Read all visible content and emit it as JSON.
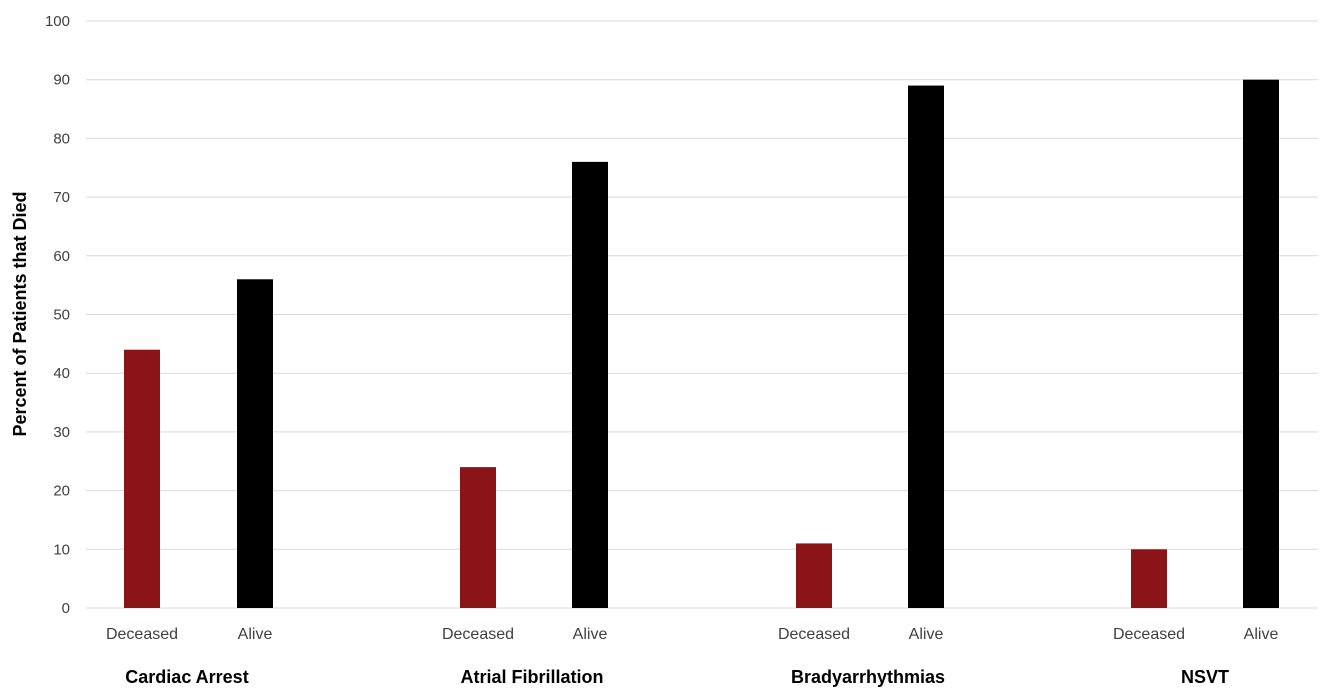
{
  "chart_data": {
    "type": "bar",
    "title": "",
    "xlabel": "",
    "ylabel": "Percent of Patients that Died",
    "ylim": [
      0,
      100
    ],
    "yticks": [
      0,
      10,
      20,
      30,
      40,
      50,
      60,
      70,
      80,
      90,
      100
    ],
    "grid": true,
    "groups": [
      {
        "label": "Cardiac Arrest",
        "bars": [
          {
            "label": "Deceased",
            "value": 44
          },
          {
            "label": "Alive",
            "value": 56
          }
        ]
      },
      {
        "label": "Atrial Fibrillation",
        "bars": [
          {
            "label": "Deceased",
            "value": 24
          },
          {
            "label": "Alive",
            "value": 76
          }
        ]
      },
      {
        "label": "Bradyarrhythmias",
        "bars": [
          {
            "label": "Deceased",
            "value": 11
          },
          {
            "label": "Alive",
            "value": 89
          }
        ]
      },
      {
        "label": "NSVT",
        "bars": [
          {
            "label": "Deceased",
            "value": 10
          },
          {
            "label": "Alive",
            "value": 90
          }
        ]
      }
    ],
    "colors": {
      "Deceased": "#8b1418",
      "Alive": "#000000",
      "grid": "#d9d9d9"
    }
  }
}
